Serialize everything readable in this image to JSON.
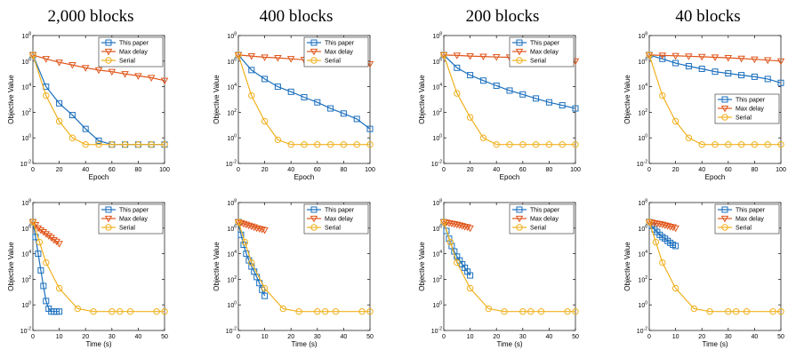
{
  "column_titles": [
    "2,000 blocks",
    "400 blocks",
    "200 blocks",
    "40 blocks"
  ],
  "colors": {
    "this_paper": "#1a6fbd",
    "max_delay": "#e0561b",
    "serial": "#f0b01e"
  },
  "chart_data": [
    {
      "type": "line",
      "yscale": "log",
      "xlabel": "Epoch",
      "ylabel": "Objective Value",
      "xlim": [
        0,
        100
      ],
      "ylim": [
        0.01,
        100000000
      ],
      "xticks": [
        "0",
        "20",
        "40",
        "60",
        "80",
        "100"
      ],
      "yticks": [
        "10^-2",
        "10^0",
        "10^2",
        "10^4",
        "10^6",
        "10^8"
      ],
      "legend_position": "top-right",
      "series": [
        {
          "name": "This paper",
          "marker": "square",
          "x": [
            0,
            10,
            20,
            30,
            40,
            50,
            60,
            70,
            80,
            90,
            100
          ],
          "y": [
            3000000,
            10000,
            500,
            60,
            5,
            0.6,
            0.3,
            0.3,
            0.3,
            0.3,
            0.3
          ]
        },
        {
          "name": "Max delay",
          "marker": "triangle",
          "x": [
            0,
            10,
            20,
            30,
            40,
            50,
            60,
            70,
            80,
            90,
            100
          ],
          "y": [
            3000000,
            1500000,
            800000,
            500000,
            300000,
            200000,
            150000,
            100000,
            70000,
            50000,
            30000
          ]
        },
        {
          "name": "Serial",
          "marker": "circle",
          "x": [
            0,
            10,
            20,
            30,
            40,
            50,
            60,
            70,
            80,
            90,
            100
          ],
          "y": [
            3000000,
            2000,
            20,
            1,
            0.3,
            0.3,
            0.3,
            0.3,
            0.3,
            0.3,
            0.3
          ]
        }
      ]
    },
    {
      "type": "line",
      "yscale": "log",
      "xlabel": "Epoch",
      "ylabel": "Objective Value",
      "xlim": [
        0,
        100
      ],
      "ylim": [
        0.01,
        100000000
      ],
      "xticks": [
        "0",
        "20",
        "40",
        "60",
        "80",
        "100"
      ],
      "yticks": [
        "10^-2",
        "10^0",
        "10^2",
        "10^4",
        "10^6",
        "10^8"
      ],
      "legend_position": "top-right",
      "series": [
        {
          "name": "This paper",
          "marker": "square",
          "x": [
            0,
            10,
            20,
            30,
            40,
            50,
            60,
            70,
            80,
            90,
            100
          ],
          "y": [
            3000000,
            200000,
            40000,
            10000,
            4000,
            1500,
            600,
            200,
            80,
            30,
            5
          ]
        },
        {
          "name": "Max delay",
          "marker": "triangle",
          "x": [
            0,
            10,
            20,
            30,
            40,
            50,
            60,
            70,
            80,
            90,
            100
          ],
          "y": [
            3000000,
            2500000,
            2000000,
            1800000,
            1500000,
            1300000,
            1100000,
            1000000,
            900000,
            800000,
            600000
          ]
        },
        {
          "name": "Serial",
          "marker": "circle",
          "x": [
            0,
            10,
            20,
            30,
            40,
            50,
            60,
            70,
            80,
            90,
            100
          ],
          "y": [
            3000000,
            2000,
            20,
            0.7,
            0.3,
            0.3,
            0.3,
            0.3,
            0.3,
            0.3,
            0.3
          ]
        }
      ]
    },
    {
      "type": "line",
      "yscale": "log",
      "xlabel": "Epoch",
      "ylabel": "Objective Value",
      "xlim": [
        0,
        100
      ],
      "ylim": [
        0.01,
        100000000
      ],
      "xticks": [
        "0",
        "20",
        "40",
        "60",
        "80",
        "100"
      ],
      "yticks": [
        "10^-2",
        "10^0",
        "10^2",
        "10^4",
        "10^6",
        "10^8"
      ],
      "legend_position": "top-right",
      "series": [
        {
          "name": "This paper",
          "marker": "square",
          "x": [
            0,
            10,
            20,
            30,
            40,
            50,
            60,
            70,
            80,
            90,
            100
          ],
          "y": [
            3000000,
            300000,
            80000,
            30000,
            12000,
            5000,
            2500,
            1200,
            600,
            350,
            200
          ]
        },
        {
          "name": "Max delay",
          "marker": "triangle",
          "x": [
            0,
            10,
            20,
            30,
            40,
            50,
            60,
            70,
            80,
            90,
            100
          ],
          "y": [
            3000000,
            2800000,
            2500000,
            2300000,
            2100000,
            2000000,
            1800000,
            1600000,
            1500000,
            1300000,
            1000000
          ]
        },
        {
          "name": "Serial",
          "marker": "circle",
          "x": [
            0,
            10,
            20,
            30,
            40,
            50,
            60,
            70,
            80,
            90,
            100
          ],
          "y": [
            3000000,
            3000,
            40,
            1,
            0.3,
            0.3,
            0.3,
            0.3,
            0.3,
            0.3,
            0.3
          ]
        }
      ]
    },
    {
      "type": "line",
      "yscale": "log",
      "xlabel": "Epoch",
      "ylabel": "Objective Value",
      "xlim": [
        0,
        100
      ],
      "ylim": [
        0.01,
        100000000
      ],
      "xticks": [
        "0",
        "20",
        "40",
        "60",
        "80",
        "100"
      ],
      "yticks": [
        "10^-2",
        "10^0",
        "10^2",
        "10^4",
        "10^6",
        "10^8"
      ],
      "legend_position": "middle-right",
      "series": [
        {
          "name": "This paper",
          "marker": "square",
          "x": [
            0,
            10,
            20,
            30,
            40,
            50,
            60,
            70,
            80,
            90,
            100
          ],
          "y": [
            3000000,
            1500000,
            700000,
            400000,
            250000,
            150000,
            110000,
            80000,
            60000,
            40000,
            20000
          ]
        },
        {
          "name": "Max delay",
          "marker": "triangle",
          "x": [
            0,
            10,
            20,
            30,
            40,
            50,
            60,
            70,
            80,
            90,
            100
          ],
          "y": [
            3000000,
            2800000,
            2600000,
            2400000,
            2200000,
            2000000,
            1800000,
            1600000,
            1400000,
            1200000,
            1000000
          ]
        },
        {
          "name": "Serial",
          "marker": "circle",
          "x": [
            0,
            10,
            20,
            30,
            40,
            50,
            60,
            70,
            80,
            90,
            100
          ],
          "y": [
            3000000,
            2000,
            20,
            1,
            0.3,
            0.3,
            0.3,
            0.3,
            0.3,
            0.3,
            0.3
          ]
        }
      ]
    },
    {
      "type": "line",
      "yscale": "log",
      "xlabel": "Time (s)",
      "ylabel": "Objective Value",
      "xlim": [
        0,
        50
      ],
      "ylim": [
        0.01,
        100000000
      ],
      "xticks": [
        "0",
        "10",
        "20",
        "30",
        "40",
        "50"
      ],
      "yticks": [
        "10^-2",
        "10^0",
        "10^2",
        "10^4",
        "10^6",
        "10^8"
      ],
      "legend_position": "top-right",
      "series": [
        {
          "name": "This paper",
          "marker": "square",
          "x": [
            0,
            1,
            2,
            3,
            4,
            5,
            6,
            7,
            8,
            9,
            10
          ],
          "y": [
            3000000,
            200000,
            10000,
            500,
            30,
            2,
            0.5,
            0.3,
            0.3,
            0.3,
            0.3
          ]
        },
        {
          "name": "Max delay",
          "marker": "triangle",
          "x": [
            0,
            1,
            2,
            3,
            4,
            5,
            6,
            7,
            8,
            9,
            10
          ],
          "y": [
            3000000,
            1800000,
            1000000,
            700000,
            500000,
            350000,
            250000,
            180000,
            120000,
            90000,
            60000
          ]
        },
        {
          "name": "Serial",
          "marker": "circle",
          "x": [
            0,
            2.5,
            5,
            10,
            17,
            23,
            30,
            33,
            37,
            47,
            50
          ],
          "y": [
            3000000,
            80000,
            2000,
            20,
            0.5,
            0.3,
            0.3,
            0.3,
            0.3,
            0.3,
            0.3
          ]
        }
      ]
    },
    {
      "type": "line",
      "yscale": "log",
      "xlabel": "Time (s)",
      "ylabel": "Objective Value",
      "xlim": [
        0,
        50
      ],
      "ylim": [
        0.01,
        100000000
      ],
      "xticks": [
        "0",
        "10",
        "20",
        "30",
        "40",
        "50"
      ],
      "yticks": [
        "10^-2",
        "10^0",
        "10^2",
        "10^4",
        "10^6",
        "10^8"
      ],
      "legend_position": "top-right",
      "series": [
        {
          "name": "This paper",
          "marker": "square",
          "x": [
            0,
            1,
            2,
            3,
            4,
            5,
            6,
            7,
            8,
            9,
            10
          ],
          "y": [
            3000000,
            300000,
            50000,
            10000,
            3000,
            1000,
            400,
            150,
            50,
            15,
            5
          ]
        },
        {
          "name": "Max delay",
          "marker": "triangle",
          "x": [
            0,
            1,
            2,
            3,
            4,
            5,
            6,
            7,
            8,
            9,
            10
          ],
          "y": [
            3000000,
            2600000,
            2200000,
            1900000,
            1600000,
            1400000,
            1200000,
            1000000,
            900000,
            800000,
            700000
          ]
        },
        {
          "name": "Serial",
          "marker": "circle",
          "x": [
            0,
            2.5,
            5,
            10,
            17,
            23,
            30,
            33,
            37,
            47,
            50
          ],
          "y": [
            3000000,
            80000,
            2000,
            20,
            0.5,
            0.3,
            0.3,
            0.3,
            0.3,
            0.3,
            0.3
          ]
        }
      ]
    },
    {
      "type": "line",
      "yscale": "log",
      "xlabel": "Time (s)",
      "ylabel": "Objective Value",
      "xlim": [
        0,
        50
      ],
      "ylim": [
        0.01,
        100000000
      ],
      "xticks": [
        "0",
        "10",
        "20",
        "30",
        "40",
        "50"
      ],
      "yticks": [
        "10^-2",
        "10^0",
        "10^2",
        "10^4",
        "10^6",
        "10^8"
      ],
      "legend_position": "top-right",
      "series": [
        {
          "name": "This paper",
          "marker": "square",
          "x": [
            0,
            1,
            2,
            3,
            4,
            5,
            6,
            7,
            8,
            9,
            10
          ],
          "y": [
            3000000,
            600000,
            150000,
            40000,
            15000,
            6000,
            3000,
            1500,
            800,
            400,
            200
          ]
        },
        {
          "name": "Max delay",
          "marker": "triangle",
          "x": [
            0,
            1,
            2,
            3,
            4,
            5,
            6,
            7,
            8,
            9,
            10
          ],
          "y": [
            3000000,
            2800000,
            2500000,
            2300000,
            2100000,
            1900000,
            1700000,
            1500000,
            1300000,
            1200000,
            1000000
          ]
        },
        {
          "name": "Serial",
          "marker": "circle",
          "x": [
            0,
            2.5,
            5,
            10,
            17,
            23,
            30,
            33,
            37,
            47,
            50
          ],
          "y": [
            3000000,
            80000,
            2000,
            20,
            0.5,
            0.3,
            0.3,
            0.3,
            0.3,
            0.3,
            0.3
          ]
        }
      ]
    },
    {
      "type": "line",
      "yscale": "log",
      "xlabel": "Time (s)",
      "ylabel": "Objective Value",
      "xlim": [
        0,
        50
      ],
      "ylim": [
        0.01,
        100000000
      ],
      "xticks": [
        "0",
        "10",
        "20",
        "30",
        "40",
        "50"
      ],
      "yticks": [
        "10^-2",
        "10^0",
        "10^2",
        "10^4",
        "10^6",
        "10^8"
      ],
      "legend_position": "top-right",
      "series": [
        {
          "name": "This paper",
          "marker": "square",
          "x": [
            0,
            1,
            2,
            3,
            4,
            5,
            6,
            7,
            8,
            9,
            10
          ],
          "y": [
            3000000,
            1500000,
            800000,
            500000,
            300000,
            200000,
            150000,
            100000,
            70000,
            50000,
            40000
          ]
        },
        {
          "name": "Max delay",
          "marker": "triangle",
          "x": [
            0,
            1,
            2,
            3,
            4,
            5,
            6,
            7,
            8,
            9,
            10
          ],
          "y": [
            3000000,
            2800000,
            2500000,
            2300000,
            2100000,
            1900000,
            1700000,
            1500000,
            1300000,
            1200000,
            1000000
          ]
        },
        {
          "name": "Serial",
          "marker": "circle",
          "x": [
            0,
            2.5,
            5,
            10,
            17,
            23,
            30,
            33,
            37,
            47,
            50
          ],
          "y": [
            3000000,
            80000,
            2000,
            20,
            0.5,
            0.3,
            0.3,
            0.3,
            0.3,
            0.3,
            0.3
          ]
        }
      ]
    }
  ]
}
